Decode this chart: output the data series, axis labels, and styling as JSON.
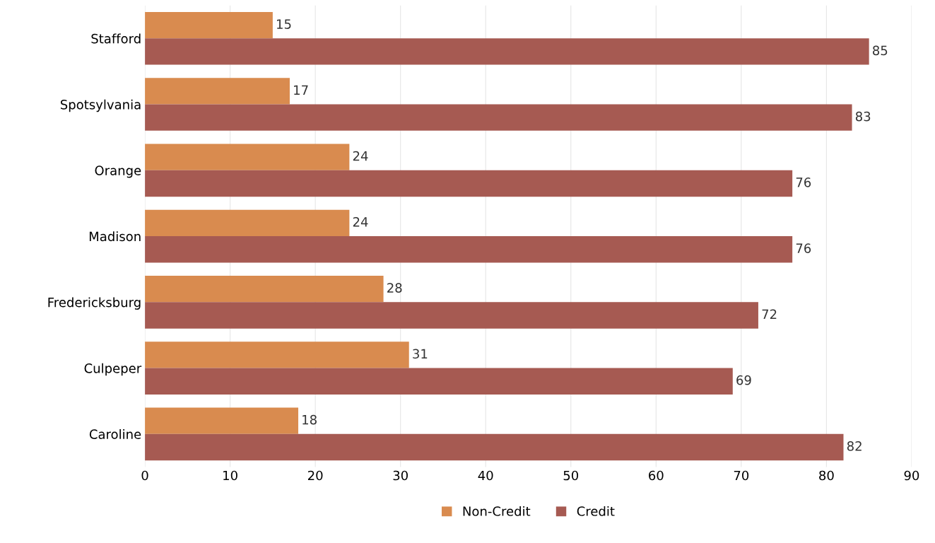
{
  "chart_data": {
    "type": "bar",
    "orientation": "horizontal",
    "categories": [
      "Stafford",
      "Spotsylvania",
      "Orange",
      "Madison",
      "Fredericksburg",
      "Culpeper",
      "Caroline"
    ],
    "series": [
      {
        "name": "Non-Credit",
        "color": "#d98b4f",
        "values": [
          15,
          17,
          24,
          24,
          28,
          31,
          18
        ]
      },
      {
        "name": "Credit",
        "color": "#a65a52",
        "values": [
          85,
          83,
          76,
          76,
          72,
          69,
          82
        ]
      }
    ],
    "xlim": [
      0,
      90
    ],
    "xticks": [
      0,
      10,
      20,
      30,
      40,
      50,
      60,
      70,
      80,
      90
    ],
    "grid": "x",
    "legend": "bottom",
    "data_labels": true
  }
}
